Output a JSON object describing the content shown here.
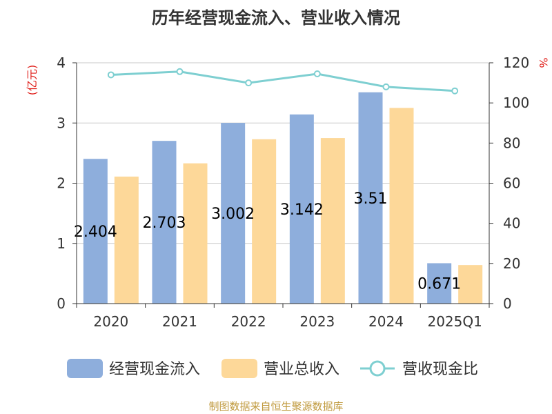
{
  "chart_data": {
    "type": "bar",
    "title": "历年经营现金流入、营业收入情况",
    "categories": [
      "2020",
      "2021",
      "2022",
      "2023",
      "2024",
      "2025Q1"
    ],
    "series": [
      {
        "name": "经营现金流入",
        "type": "bar",
        "axis": "left",
        "color": "#8eaedc",
        "values": [
          2.404,
          2.703,
          3.002,
          3.142,
          3.51,
          0.671
        ],
        "labels": [
          "2.404",
          "2.703",
          "3.002",
          "3.142",
          "3.51",
          "0.671"
        ]
      },
      {
        "name": "营业总收入",
        "type": "bar",
        "axis": "left",
        "color": "#fdd899",
        "values": [
          2.11,
          2.33,
          2.73,
          2.75,
          3.25,
          0.64
        ]
      },
      {
        "name": "营收现金比",
        "type": "line",
        "axis": "right",
        "color": "#7ecfd1",
        "values": [
          114,
          115.6,
          110,
          114.5,
          108,
          106
        ]
      }
    ],
    "y_left": {
      "unit": "(亿元)",
      "min": 0,
      "max": 4,
      "ticks": [
        "0",
        "1",
        "2",
        "3",
        "4"
      ]
    },
    "y_right": {
      "unit": "%",
      "min": 0,
      "max": 120,
      "ticks": [
        "0",
        "20",
        "40",
        "60",
        "80",
        "100",
        "120"
      ]
    },
    "grid": true,
    "legend": "bottom",
    "source": "制图数据来自恒生聚源数据库"
  }
}
